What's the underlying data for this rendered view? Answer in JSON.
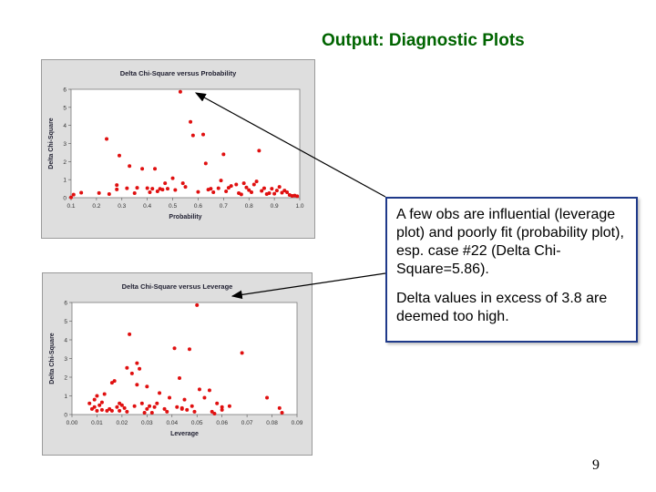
{
  "slide_title": "Output: Diagnostic Plots",
  "callout": {
    "paragraph1": "A few obs are influential (leverage plot) and poorly fit (probability plot), esp. case #22 (Delta Chi-Square=5.86).",
    "paragraph2": "Delta values in excess of 3.8 are deemed too high."
  },
  "page_number": "9",
  "colors": {
    "point": "#e01010",
    "title": "#006400",
    "callout_border": "#1f3a8a"
  },
  "chart_data": [
    {
      "type": "scatter",
      "title": "Delta Chi-Square versus Probability",
      "xlabel": "Probability",
      "ylabel": "Delta Chi-Square",
      "xlim": [
        0.1,
        1.0
      ],
      "ylim": [
        0,
        6
      ],
      "xticks": [
        "0.1",
        "0.2",
        "0.3",
        "0.4",
        "0.5",
        "0.6",
        "0.7",
        "0.8",
        "0.9",
        "1.0"
      ],
      "yticks": [
        "0",
        "1",
        "2",
        "3",
        "4",
        "5",
        "6"
      ],
      "grid": false,
      "x": [
        0.11,
        0.14,
        0.21,
        0.24,
        0.25,
        0.28,
        0.29,
        0.32,
        0.33,
        0.36,
        0.38,
        0.4,
        0.41,
        0.42,
        0.43,
        0.45,
        0.46,
        0.47,
        0.48,
        0.5,
        0.51,
        0.53,
        0.54,
        0.57,
        0.58,
        0.6,
        0.62,
        0.63,
        0.65,
        0.66,
        0.68,
        0.7,
        0.72,
        0.73,
        0.75,
        0.76,
        0.77,
        0.78,
        0.79,
        0.8,
        0.81,
        0.82,
        0.84,
        0.85,
        0.86,
        0.87,
        0.88,
        0.89,
        0.9,
        0.91,
        0.93,
        0.94,
        0.95,
        0.96,
        0.97,
        0.1,
        0.28,
        0.35,
        0.44,
        0.55,
        0.64,
        0.69,
        0.71,
        0.83,
        0.92,
        0.98,
        0.99
      ],
      "y": [
        0.17,
        0.28,
        0.26,
        3.25,
        0.2,
        0.46,
        2.33,
        0.52,
        1.75,
        0.55,
        1.6,
        0.53,
        0.3,
        0.5,
        1.6,
        0.49,
        0.45,
        0.8,
        0.5,
        1.08,
        0.43,
        5.86,
        0.8,
        4.2,
        3.45,
        0.32,
        3.5,
        1.9,
        0.5,
        0.3,
        0.52,
        2.4,
        0.55,
        0.65,
        0.73,
        0.25,
        0.18,
        0.8,
        0.57,
        0.42,
        0.3,
        0.73,
        2.6,
        0.38,
        0.52,
        0.2,
        0.25,
        0.5,
        0.22,
        0.4,
        0.28,
        0.4,
        0.3,
        0.15,
        0.1,
        0.02,
        0.7,
        0.25,
        0.35,
        0.6,
        0.45,
        0.95,
        0.35,
        0.9,
        0.6,
        0.12,
        0.08
      ]
    },
    {
      "type": "scatter",
      "title": "Delta Chi-Square versus Leverage",
      "xlabel": "Leverage",
      "ylabel": "Delta Chi-Square",
      "xlim": [
        0.0,
        0.09
      ],
      "ylim": [
        0,
        6
      ],
      "xticks": [
        "0.00",
        "0.01",
        "0.02",
        "0.03",
        "0.04",
        "0.05",
        "0.06",
        "0.07",
        "0.08",
        "0.09"
      ],
      "yticks": [
        "0",
        "1",
        "2",
        "3",
        "4",
        "5",
        "6"
      ],
      "grid": false,
      "x": [
        0.007,
        0.008,
        0.009,
        0.01,
        0.01,
        0.011,
        0.012,
        0.013,
        0.014,
        0.015,
        0.016,
        0.017,
        0.018,
        0.019,
        0.02,
        0.021,
        0.022,
        0.023,
        0.024,
        0.025,
        0.026,
        0.027,
        0.028,
        0.029,
        0.03,
        0.031,
        0.032,
        0.033,
        0.035,
        0.037,
        0.039,
        0.041,
        0.042,
        0.043,
        0.044,
        0.045,
        0.046,
        0.047,
        0.048,
        0.049,
        0.05,
        0.053,
        0.055,
        0.056,
        0.058,
        0.06,
        0.063,
        0.068,
        0.078,
        0.083,
        0.084,
        0.009,
        0.012,
        0.016,
        0.019,
        0.022,
        0.026,
        0.03,
        0.034,
        0.038,
        0.044,
        0.051,
        0.057,
        0.06
      ],
      "y": [
        0.6,
        0.3,
        0.4,
        1.0,
        0.2,
        0.5,
        0.25,
        1.1,
        0.2,
        0.3,
        1.7,
        1.8,
        0.4,
        0.6,
        0.5,
        0.35,
        2.5,
        4.3,
        2.2,
        0.45,
        1.6,
        2.45,
        0.6,
        0.1,
        1.5,
        0.45,
        0.1,
        0.4,
        1.15,
        0.3,
        0.9,
        3.55,
        0.4,
        1.95,
        0.3,
        0.8,
        0.25,
        3.5,
        0.45,
        0.15,
        5.86,
        0.9,
        1.3,
        0.15,
        0.6,
        0.4,
        0.45,
        3.3,
        0.9,
        0.35,
        0.1,
        0.8,
        0.65,
        0.2,
        0.2,
        0.15,
        2.75,
        0.3,
        0.6,
        0.15,
        0.35,
        1.35,
        0.05,
        0.25
      ]
    }
  ]
}
